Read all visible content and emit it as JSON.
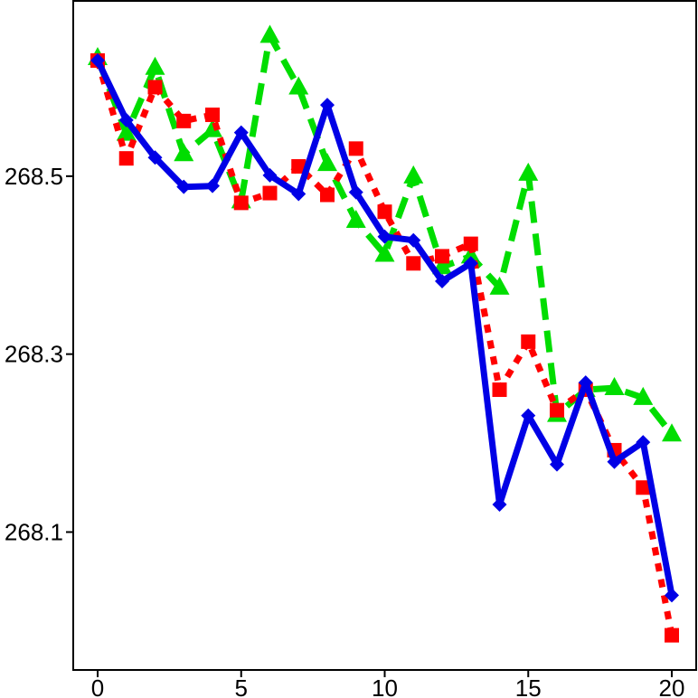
{
  "chart_data": {
    "type": "line",
    "title": "",
    "xlabel": "",
    "ylabel": "",
    "xlim": [
      -0.85,
      20.85
    ],
    "ylim": [
      267.945,
      268.697
    ],
    "x_ticks": [
      "0",
      "5",
      "10",
      "15",
      "20"
    ],
    "y_ticks": [
      "268.1",
      "268.3",
      "268.5"
    ],
    "x_tick_values": [
      0,
      5,
      10,
      15,
      20
    ],
    "y_tick_values": [
      268.1,
      268.3,
      268.5
    ],
    "grid": false,
    "legend": "none",
    "x": [
      0,
      1,
      2,
      3,
      4,
      5,
      6,
      7,
      8,
      9,
      10,
      11,
      12,
      13,
      14,
      15,
      16,
      17,
      18,
      19,
      20
    ],
    "series": [
      {
        "color": "#0000e6",
        "line_style": "solid",
        "marker": "diamond",
        "values": [
          268.63,
          268.563,
          268.521,
          268.488,
          268.489,
          268.549,
          268.501,
          268.48,
          268.58,
          268.482,
          268.432,
          268.428,
          268.382,
          268.402,
          268.131,
          268.231,
          268.176,
          268.268,
          268.179,
          268.201,
          268.029
        ]
      },
      {
        "color": "#ff0000",
        "line_style": "dotted",
        "marker": "square",
        "values": [
          268.63,
          268.52,
          268.6,
          268.562,
          268.569,
          268.47,
          268.481,
          268.511,
          268.479,
          268.531,
          268.46,
          268.402,
          268.41,
          268.424,
          268.26,
          268.314,
          268.237,
          268.26,
          268.192,
          268.15,
          267.984
        ]
      },
      {
        "color": "#00dd00",
        "line_style": "dashed",
        "marker": "triangle",
        "values": [
          268.633,
          268.548,
          268.622,
          268.525,
          268.552,
          268.472,
          268.658,
          268.6,
          268.514,
          268.45,
          268.412,
          268.5,
          268.398,
          268.41,
          268.375,
          268.503,
          268.232,
          268.26,
          268.262,
          268.251,
          268.21
        ]
      }
    ]
  }
}
